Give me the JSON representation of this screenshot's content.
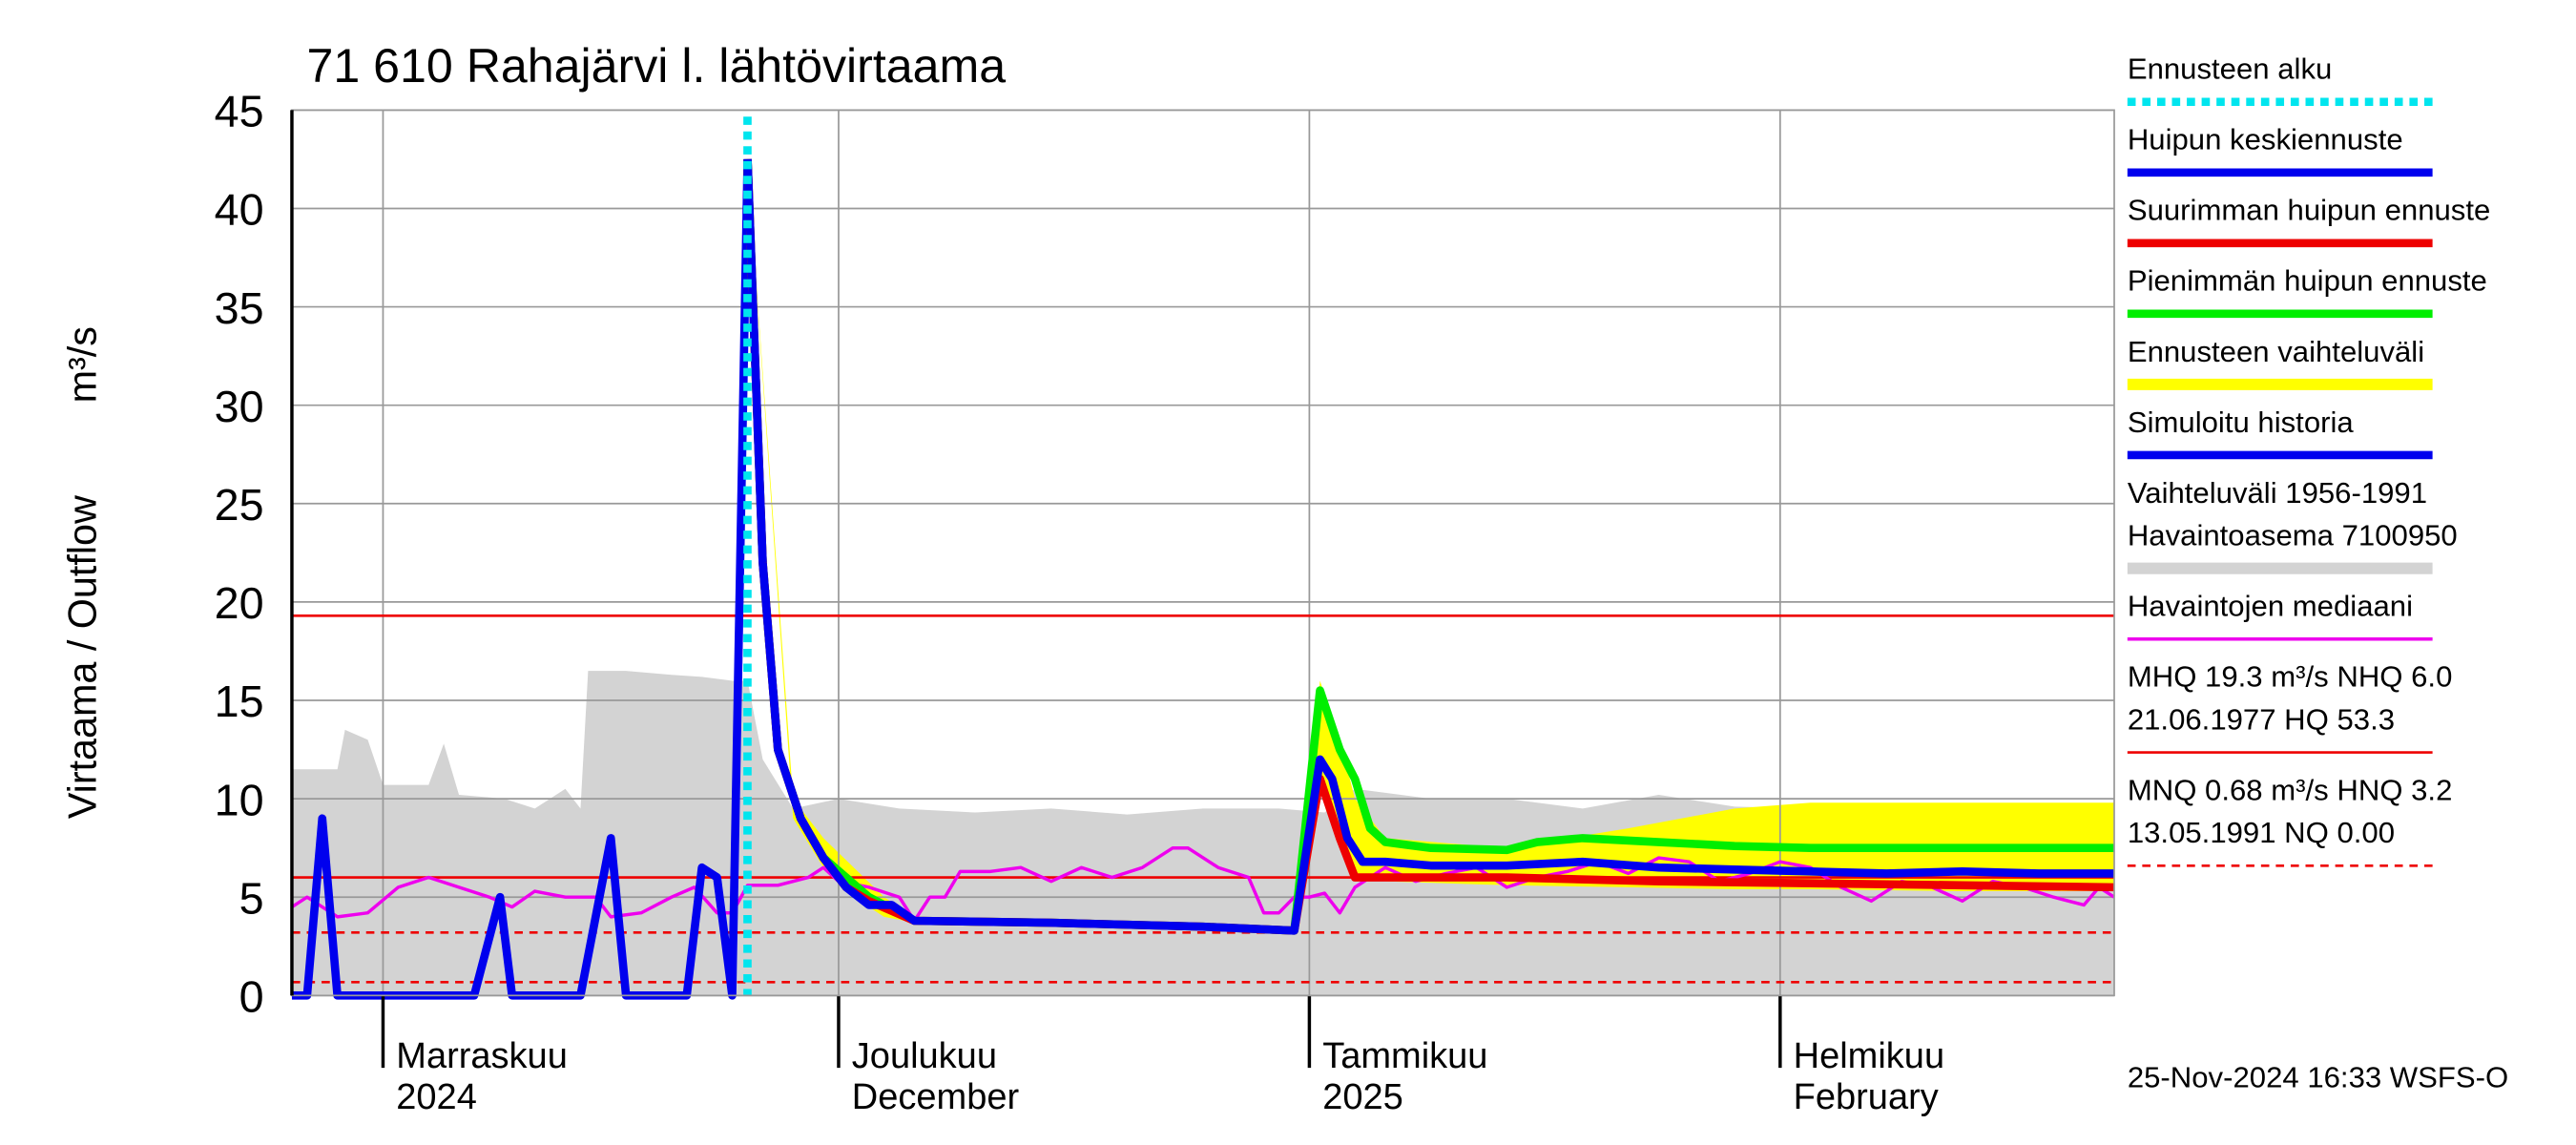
{
  "chart_data": {
    "type": "line",
    "title": "71 610 Rahajärvi l. lähtövirtaama",
    "y_label": "Virtaama / Outflow",
    "y_unit": "m³/s",
    "footer": "25-Nov-2024 16:33 WSFS-O",
    "xlim": [
      0,
      120
    ],
    "xticks": [
      {
        "value": 6,
        "label": "Marraskuu"
      },
      {
        "value": 36,
        "label": "Joulukuu"
      },
      {
        "value": 67,
        "label": "Tammikuu"
      },
      {
        "value": 98,
        "label": "Helmikuu"
      }
    ],
    "x_sublabels": [
      "2024",
      "December",
      "2025",
      "February"
    ],
    "ylim": [
      0,
      45
    ],
    "yticks": [
      0,
      5,
      10,
      15,
      20,
      25,
      30,
      35,
      40,
      45
    ],
    "grid": true,
    "forecast_start": {
      "name": "Ennusteen alku",
      "x": 30,
      "color": "#00e5ee"
    },
    "series": [
      {
        "name": "Huipun keskiennuste",
        "kind": "line",
        "color": "#0000ee",
        "line_width": 5,
        "x": [
          30,
          31,
          32,
          33.5,
          35,
          36.5,
          38,
          39.5,
          41,
          50,
          60,
          66,
          67.7,
          68.5,
          69.5,
          70.5,
          72,
          75,
          80,
          85,
          90,
          95,
          100,
          105,
          110,
          115,
          120
        ],
        "values": [
          42.5,
          22,
          12.5,
          9,
          7,
          5.5,
          4.6,
          4.6,
          3.8,
          3.7,
          3.5,
          3.3,
          12,
          11,
          8,
          6.8,
          6.8,
          6.6,
          6.6,
          6.8,
          6.5,
          6.4,
          6.3,
          6.2,
          6.3,
          6.2,
          6.2
        ]
      },
      {
        "name": "Suurimman huipun ennuste",
        "kind": "line",
        "color": "#ee0000",
        "line_width": 5,
        "x": [
          30,
          31,
          32,
          33.5,
          35,
          36.5,
          38,
          41,
          50,
          60,
          66,
          67.7,
          69,
          70,
          72,
          80,
          90,
          100,
          110,
          120
        ],
        "values": [
          42.5,
          22,
          12.5,
          9,
          7,
          5.5,
          4.8,
          3.8,
          3.7,
          3.5,
          3.3,
          11,
          8,
          6,
          6,
          6,
          5.8,
          5.7,
          5.6,
          5.5
        ]
      },
      {
        "name": "Pienimmän huipun ennuste",
        "kind": "line",
        "color": "#00ee00",
        "line_width": 5,
        "x": [
          30,
          31,
          32,
          33.5,
          35,
          38,
          41,
          50,
          60,
          66,
          67.7,
          69,
          70,
          71,
          72,
          75,
          80,
          82,
          85,
          90,
          95,
          100,
          110,
          120
        ],
        "values": [
          42.5,
          22,
          12.5,
          9,
          7,
          5,
          3.8,
          3.7,
          3.5,
          3.3,
          15.5,
          12.5,
          11,
          8.5,
          7.8,
          7.5,
          7.4,
          7.8,
          8,
          7.8,
          7.6,
          7.5,
          7.5,
          7.5
        ]
      },
      {
        "name": "Ennusteen vaihteluväli",
        "kind": "band",
        "color": "#ffff00",
        "x": [
          30,
          33,
          35,
          37,
          39,
          41,
          66,
          67.7,
          69,
          70,
          72,
          80,
          88,
          95,
          100,
          110,
          120
        ],
        "values": [
          42.5,
          10,
          8,
          6.5,
          5,
          4,
          3.3,
          16,
          13,
          10,
          8,
          7.5,
          8.5,
          9.5,
          9.8,
          9.8,
          9.8
        ],
        "low": [
          42.5,
          9,
          6.5,
          5,
          4,
          3.7,
          3.2,
          11,
          8.5,
          6,
          5.8,
          5.6,
          5.5,
          5.4,
          5.4,
          5.3,
          5.3
        ]
      },
      {
        "name": "Simuloitu historia",
        "kind": "line",
        "color": "#0000ee",
        "line_width": 5,
        "x": [
          0,
          1,
          2,
          3,
          12,
          13.7,
          14.5,
          19,
          21,
          22,
          26,
          27,
          28,
          29,
          30
        ],
        "values": [
          0,
          0,
          9,
          0,
          0,
          5,
          0,
          0,
          8,
          0,
          0,
          6.5,
          6,
          0,
          42.5
        ]
      },
      {
        "name": [
          "Vaihteluväli 1956-1991",
          " Havaintoasema 7100950"
        ],
        "kind": "band",
        "color": "#d3d3d3",
        "x": [
          0,
          3,
          3.5,
          5,
          6,
          9,
          10,
          11,
          14,
          16,
          18,
          19,
          19.5,
          22,
          25,
          27,
          29,
          30,
          31,
          33,
          36,
          40,
          45,
          50,
          55,
          60,
          65,
          68,
          70,
          72,
          75,
          80,
          85,
          90,
          95,
          100,
          105,
          110,
          115,
          120
        ],
        "values": [
          11.5,
          11.5,
          13.5,
          13,
          10.7,
          10.7,
          12.8,
          10.2,
          10,
          9.5,
          10.5,
          9.5,
          16.5,
          16.5,
          16.3,
          16.2,
          16,
          16,
          12,
          9.5,
          10,
          9.5,
          9.3,
          9.5,
          9.2,
          9.5,
          9.5,
          9.3,
          10.5,
          10.3,
          10,
          10,
          9.5,
          10.2,
          9.6,
          9.5,
          9.5,
          9.3,
          9.6,
          9.4
        ]
      },
      {
        "name": "Havaintojen mediaani",
        "kind": "line",
        "color": "#ee00ee",
        "line_width": 2,
        "x": [
          0,
          1,
          3,
          5,
          7,
          9,
          11,
          13,
          14.5,
          16,
          18,
          20,
          21,
          23,
          25,
          26.5,
          28,
          29,
          30,
          32,
          34,
          35,
          36,
          38,
          40,
          41,
          42,
          43,
          44,
          46,
          48,
          50,
          52,
          54,
          56,
          58,
          59,
          61,
          63,
          64,
          65,
          66,
          67,
          68,
          69,
          70,
          72,
          74,
          76,
          78,
          80,
          82,
          84,
          86,
          88,
          90,
          92,
          94,
          96,
          98,
          100,
          102,
          104,
          106,
          108,
          110,
          112,
          114,
          116,
          118,
          119,
          120
        ],
        "values": [
          4.5,
          5,
          4,
          4.2,
          5.5,
          6,
          5.5,
          5,
          4.5,
          5.3,
          5,
          5,
          4,
          4.2,
          5,
          5.5,
          4.2,
          4.2,
          5.6,
          5.6,
          6,
          6.5,
          5.8,
          5.5,
          5,
          3.8,
          5,
          5,
          6.3,
          6.3,
          6.5,
          5.8,
          6.5,
          6,
          6.5,
          7.5,
          7.5,
          6.5,
          6,
          4.2,
          4.2,
          5,
          5,
          5.2,
          4.2,
          5.5,
          6.5,
          5.8,
          6.2,
          6.5,
          5.5,
          6,
          6.3,
          6.8,
          6.2,
          7,
          6.8,
          5.8,
          6.2,
          6.8,
          6.5,
          5.5,
          4.8,
          5.8,
          5.5,
          4.8,
          5.8,
          5.5,
          5,
          4.6,
          5.5,
          5
        ]
      }
    ],
    "reference_lines": [
      {
        "name": [
          "MHQ 19.3 m³/s NHQ  6.0",
          "21.06.1977 HQ 53.3"
        ],
        "values": [
          19.3,
          6.0
        ],
        "color": "#ee0000",
        "dashed": false
      },
      {
        "name": [
          "MNQ 0.68 m³/s HNQ  3.2",
          "13.05.1991 NQ 0.00"
        ],
        "values": [
          0.68,
          3.2
        ],
        "color": "#ee0000",
        "dashed": true
      }
    ]
  }
}
